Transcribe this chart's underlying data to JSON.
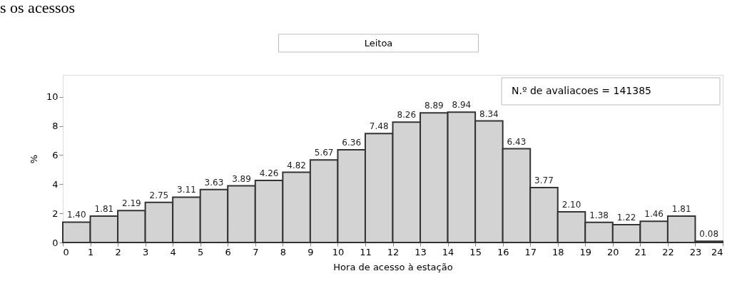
{
  "chart_data": {
    "type": "histogram",
    "title": "Leitoa",
    "xlabel": "Hora de acesso à estação",
    "ylabel": "%",
    "annotations": [
      "s os acessos",
      "N.º de avaliacoes =    141385"
    ],
    "bins": [
      0,
      1,
      2,
      3,
      4,
      5,
      6,
      7,
      8,
      9,
      10,
      11,
      12,
      13,
      14,
      15,
      16,
      17,
      18,
      19,
      20,
      21,
      22,
      23,
      24
    ],
    "values": [
      1.4,
      1.81,
      2.19,
      2.75,
      3.11,
      3.63,
      3.89,
      4.26,
      4.82,
      5.67,
      6.36,
      7.48,
      8.26,
      8.89,
      8.94,
      8.34,
      6.43,
      3.77,
      2.1,
      1.38,
      1.22,
      1.46,
      1.81,
      0.08
    ],
    "color": "#d3d3d3",
    "value_labels": [
      "1.40",
      "1.81",
      "2.19",
      "2.75",
      "3.11",
      "3.63",
      "3.89",
      "4.26",
      "4.82",
      "5.67",
      "6.36",
      "7.48",
      "8.26",
      "8.89",
      "8.94",
      "8.34",
      "6.43",
      "3.77",
      "2.10",
      "1.38",
      "1.22",
      "1.46",
      "1.81",
      "0.08"
    ],
    "xlim": [
      0,
      24
    ],
    "xticks": [
      0,
      1,
      2,
      3,
      4,
      5,
      6,
      7,
      8,
      9,
      10,
      11,
      12,
      13,
      14,
      15,
      16,
      17,
      18,
      19,
      20,
      21,
      22,
      23,
      24
    ],
    "ylim": [
      0,
      11.5
    ],
    "yticks": [
      0,
      2,
      4,
      6,
      8,
      10
    ],
    "grid": false
  }
}
